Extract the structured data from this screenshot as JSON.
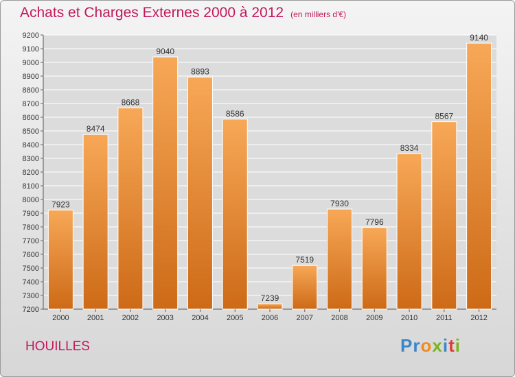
{
  "header": {
    "title": "Achats et Charges Externes 2000 à 2012",
    "subtitle": "(en milliers d'€)"
  },
  "footer": {
    "commune": "HOUILLES",
    "logo_text": "Proxiti"
  },
  "colors": {
    "title": "#c2185b",
    "bar_top": "#f7a857",
    "bar_bottom": "#cd6a17",
    "grid": "#ffffff",
    "logo_letters": [
      "#3a86c8",
      "#3a86c8",
      "#f28a1c",
      "#7ab51d",
      "#3a86c8",
      "#e03a3a",
      "#7ab51d"
    ]
  },
  "chart_data": {
    "type": "bar",
    "title": "Achats et Charges Externes 2000 à 2012",
    "subtitle": "(en milliers d'€)",
    "categories": [
      "2000",
      "2001",
      "2002",
      "2003",
      "2004",
      "2005",
      "2006",
      "2007",
      "2008",
      "2009",
      "2010",
      "2011",
      "2012"
    ],
    "values": [
      7923,
      8474,
      8668,
      9040,
      8893,
      8586,
      7239,
      7519,
      7930,
      7796,
      8334,
      8567,
      9140
    ],
    "ylim": [
      7200,
      9200
    ],
    "yticks": [
      7200,
      7300,
      7400,
      7500,
      7600,
      7700,
      7800,
      7900,
      8000,
      8100,
      8200,
      8300,
      8400,
      8500,
      8600,
      8700,
      8800,
      8900,
      9000,
      9100,
      9200
    ],
    "grid": true,
    "data_labels": true
  }
}
